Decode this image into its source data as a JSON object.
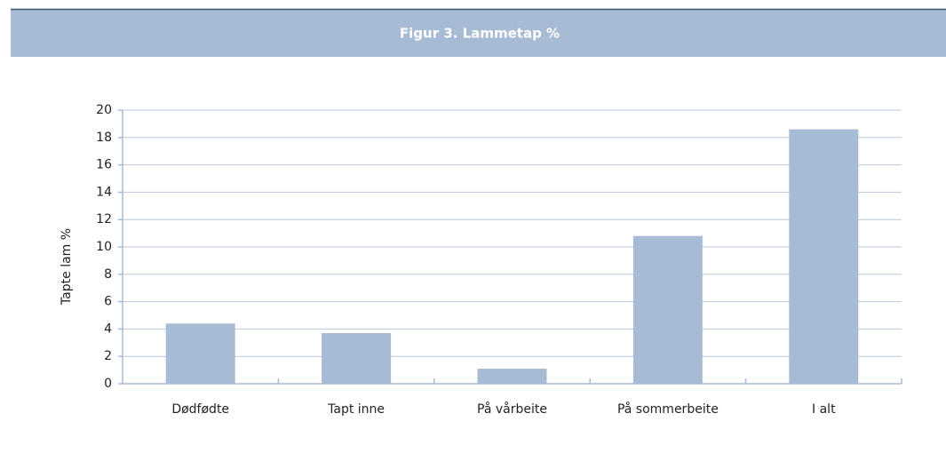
{
  "chart_data": {
    "type": "bar",
    "title": "Figur 3. Lammetap %",
    "y_label": "Tapte lam %",
    "categories": [
      "Dødfødte",
      "Tapt inne",
      "På vårbeite",
      "På sommerbeite",
      "I alt"
    ],
    "values": [
      4.4,
      3.7,
      1.1,
      10.8,
      18.6
    ],
    "color": "#a7bbd4",
    "ylim": [
      0,
      20
    ],
    "yticks": [
      0,
      2,
      4,
      6,
      8,
      10,
      12,
      14,
      16,
      18,
      20
    ],
    "grid": true
  }
}
